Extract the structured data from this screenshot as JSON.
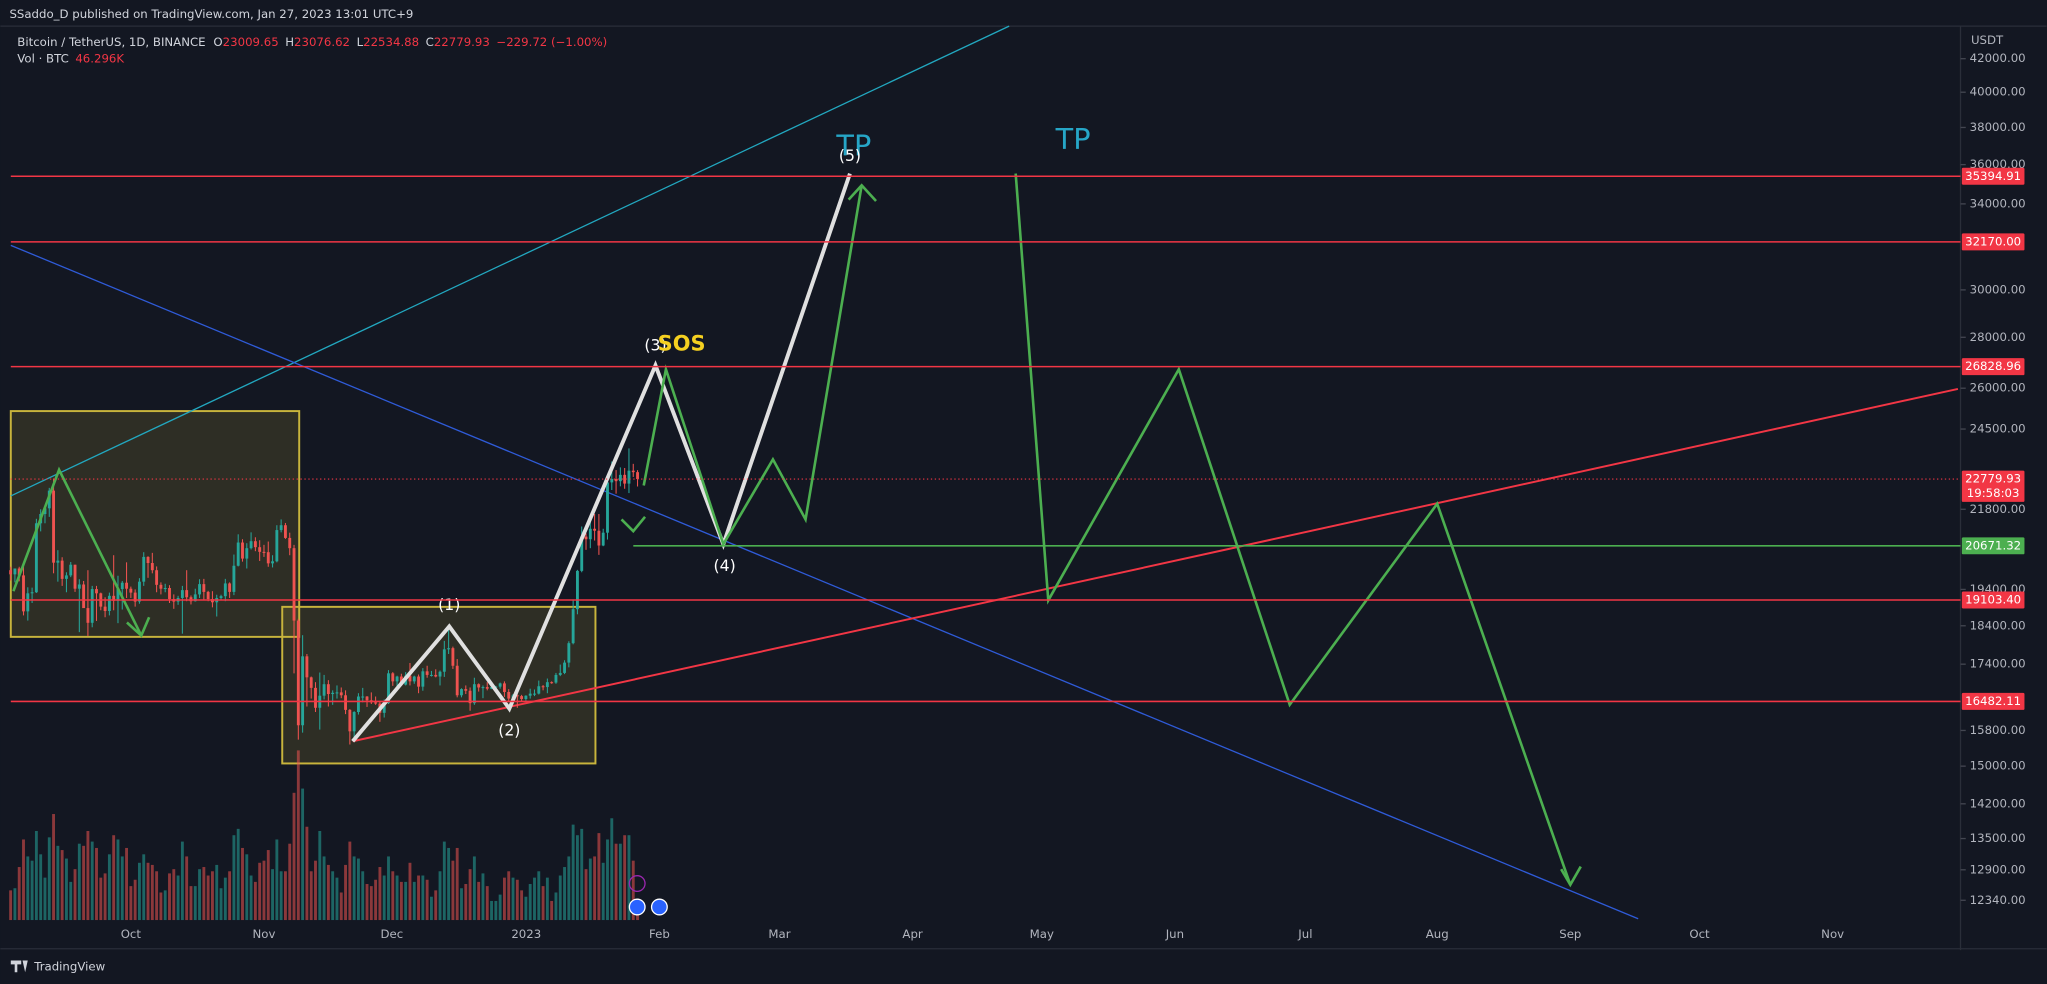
{
  "header": {
    "publisher": "SSaddo_D published on TradingView.com, Jan 27, 2023 13:01 UTC+9",
    "symbol": "Bitcoin / TetherUS, 1D, BINANCE",
    "o_label": "O",
    "open": "23009.65",
    "h_label": "H",
    "high": "23076.62",
    "l_label": "L",
    "low": "22534.88",
    "c_label": "C",
    "close": "22779.93",
    "change": "−229.72 (−1.00%)",
    "vol_label": "Vol · BTC",
    "vol_value": "46.296K"
  },
  "footer": "TradingView",
  "chart_data": {
    "type": "candlestick",
    "currency": "USDT",
    "log": true,
    "ylim": [
      11990,
      44040
    ],
    "yticks": [
      {
        "value": 42000,
        "label": "42000.00"
      },
      {
        "value": 40000,
        "label": "40000.00"
      },
      {
        "value": 38000,
        "label": "38000.00"
      },
      {
        "value": 36000,
        "label": "36000.00"
      },
      {
        "value": 34000,
        "label": "34000.00"
      },
      {
        "value": 30000,
        "label": "30000.00"
      },
      {
        "value": 28000,
        "label": "28000.00"
      },
      {
        "value": 26000,
        "label": "26000.00"
      },
      {
        "value": 24500,
        "label": "24500.00"
      },
      {
        "value": 21800,
        "label": "21800.00"
      },
      {
        "value": 19400,
        "label": "19400.00"
      },
      {
        "value": 18400,
        "label": "18400.00"
      },
      {
        "value": 17400,
        "label": "17400.00"
      },
      {
        "value": 15800,
        "label": "15800.00"
      },
      {
        "value": 15000,
        "label": "15000.00"
      },
      {
        "value": 14200,
        "label": "14200.00"
      },
      {
        "value": 13500,
        "label": "13500.00"
      },
      {
        "value": 12900,
        "label": "12900.00"
      },
      {
        "value": 12340,
        "label": "12340.00"
      }
    ],
    "time_labels": [
      "Oct",
      "Nov",
      "Dec",
      "2023",
      "Feb",
      "Mar",
      "Apr",
      "May",
      "Jun",
      "Jul",
      "Aug",
      "Sep",
      "Oct",
      "Nov"
    ],
    "up_color": "#26a69a",
    "down_color": "#ef5350",
    "candles": [
      [
        19950,
        20050,
        19650,
        19830
      ],
      [
        19830,
        20000,
        19600,
        20000
      ],
      [
        20000,
        20050,
        19630,
        19800
      ],
      [
        19800,
        20180,
        18680,
        18790
      ],
      [
        18790,
        19460,
        18540,
        19290
      ],
      [
        19290,
        19450,
        19020,
        19320
      ],
      [
        19320,
        21500,
        19300,
        21360
      ],
      [
        21360,
        21800,
        21110,
        21650
      ],
      [
        21650,
        21850,
        21360,
        21830
      ],
      [
        21830,
        22490,
        21560,
        22400
      ],
      [
        22400,
        22800,
        19860,
        20170
      ],
      [
        20170,
        20540,
        19620,
        20230
      ],
      [
        20230,
        20330,
        19500,
        19700
      ],
      [
        19700,
        19890,
        19320,
        19800
      ],
      [
        19800,
        20190,
        19750,
        20110
      ],
      [
        20110,
        20110,
        19330,
        19420
      ],
      [
        19420,
        19690,
        18230,
        19540
      ],
      [
        19540,
        19640,
        18900,
        18880
      ],
      [
        18880,
        19950,
        18130,
        18480
      ],
      [
        18480,
        19500,
        18360,
        19410
      ],
      [
        19410,
        19500,
        18530,
        19290
      ],
      [
        19290,
        19310,
        18820,
        18920
      ],
      [
        18920,
        19180,
        18630,
        18800
      ],
      [
        18800,
        19310,
        18680,
        19220
      ],
      [
        19220,
        20390,
        18820,
        19080
      ],
      [
        19080,
        19790,
        18470,
        19410
      ],
      [
        19410,
        19640,
        18840,
        19590
      ],
      [
        19590,
        20180,
        19160,
        19420
      ],
      [
        19420,
        19480,
        19160,
        19310
      ],
      [
        19310,
        19400,
        18920,
        19060
      ],
      [
        19060,
        19720,
        19000,
        19620
      ],
      [
        19620,
        20480,
        19500,
        20340
      ],
      [
        20340,
        20360,
        19730,
        20160
      ],
      [
        20160,
        20460,
        19860,
        19950
      ],
      [
        19950,
        20060,
        19320,
        19530
      ],
      [
        19530,
        19600,
        19260,
        19420
      ],
      [
        19420,
        19560,
        19320,
        19440
      ],
      [
        19440,
        19520,
        19020,
        19130
      ],
      [
        19130,
        19260,
        18860,
        19060
      ],
      [
        19060,
        19220,
        18970,
        19160
      ],
      [
        19160,
        19500,
        18190,
        19380
      ],
      [
        19380,
        19950,
        19070,
        19180
      ],
      [
        19180,
        19230,
        18980,
        19070
      ],
      [
        19070,
        19420,
        19060,
        19260
      ],
      [
        19260,
        19690,
        19160,
        19550
      ],
      [
        19550,
        19700,
        19100,
        19330
      ],
      [
        19330,
        19360,
        19070,
        19130
      ],
      [
        19130,
        19350,
        18900,
        19040
      ],
      [
        19040,
        19250,
        18650,
        19160
      ],
      [
        19160,
        19250,
        19110,
        19210
      ],
      [
        19210,
        19700,
        19070,
        19570
      ],
      [
        19570,
        19600,
        19160,
        19330
      ],
      [
        19330,
        20410,
        19240,
        20080
      ],
      [
        20080,
        21020,
        20060,
        20770
      ],
      [
        20770,
        20870,
        20200,
        20290
      ],
      [
        20290,
        20750,
        20000,
        20600
      ],
      [
        20600,
        21080,
        20560,
        20810
      ],
      [
        20810,
        20930,
        20510,
        20630
      ],
      [
        20630,
        20840,
        20220,
        20490
      ],
      [
        20490,
        20700,
        20340,
        20480
      ],
      [
        20480,
        20800,
        20050,
        20150
      ],
      [
        20150,
        20390,
        20030,
        20210
      ],
      [
        20210,
        21300,
        20180,
        21150
      ],
      [
        21150,
        21480,
        21080,
        21300
      ],
      [
        21300,
        21370,
        20880,
        20910
      ],
      [
        20910,
        21070,
        20390,
        20600
      ],
      [
        20600,
        20700,
        17170,
        18540
      ],
      [
        18540,
        18590,
        15590,
        15920
      ],
      [
        15920,
        18150,
        15750,
        17600
      ],
      [
        17600,
        17660,
        16360,
        17070
      ],
      [
        17070,
        17090,
        16550,
        16810
      ],
      [
        16810,
        16950,
        16230,
        16330
      ],
      [
        16330,
        17190,
        15820,
        16620
      ],
      [
        16620,
        17130,
        16530,
        16900
      ],
      [
        16900,
        17000,
        16360,
        16660
      ],
      [
        16660,
        16750,
        16400,
        16690
      ],
      [
        16690,
        16870,
        16550,
        16700
      ],
      [
        16700,
        16820,
        16560,
        16630
      ],
      [
        16630,
        16750,
        16180,
        16280
      ],
      [
        16280,
        16300,
        15480,
        15780
      ],
      [
        15780,
        16250,
        15630,
        16230
      ],
      [
        16230,
        16680,
        16170,
        16600
      ],
      [
        16600,
        16810,
        16460,
        16600
      ],
      [
        16600,
        16610,
        16350,
        16510
      ],
      [
        16510,
        16700,
        16420,
        16460
      ],
      [
        16460,
        16600,
        16400,
        16430
      ],
      [
        16430,
        16480,
        16000,
        16210
      ],
      [
        16210,
        16530,
        16100,
        16440
      ],
      [
        16440,
        17250,
        16420,
        17170
      ],
      [
        17170,
        17200,
        16860,
        16970
      ],
      [
        16970,
        17110,
        16790,
        17090
      ],
      [
        17090,
        17160,
        16860,
        16890
      ],
      [
        16890,
        17200,
        16870,
        17110
      ],
      [
        17110,
        17430,
        16870,
        16970
      ],
      [
        16970,
        17110,
        16910,
        17090
      ],
      [
        17090,
        17140,
        16680,
        16840
      ],
      [
        16840,
        17300,
        16740,
        17220
      ],
      [
        17220,
        17360,
        17060,
        17130
      ],
      [
        17130,
        17230,
        17090,
        17130
      ],
      [
        17130,
        17270,
        17070,
        17090
      ],
      [
        17090,
        17240,
        16870,
        17210
      ],
      [
        17210,
        18000,
        17080,
        17780
      ],
      [
        17780,
        18390,
        17660,
        17810
      ],
      [
        17810,
        17850,
        17280,
        17360
      ],
      [
        17360,
        17530,
        16580,
        16630
      ],
      [
        16630,
        16800,
        16580,
        16780
      ],
      [
        16780,
        16870,
        16660,
        16740
      ],
      [
        16740,
        16820,
        16260,
        16440
      ],
      [
        16440,
        17060,
        16400,
        16900
      ],
      [
        16900,
        16920,
        16720,
        16820
      ],
      [
        16820,
        16870,
        16560,
        16830
      ],
      [
        16830,
        16950,
        16750,
        16790
      ],
      [
        16790,
        16870,
        16780,
        16830
      ],
      [
        16830,
        16860,
        16730,
        16840
      ],
      [
        16840,
        16940,
        16790,
        16920
      ],
      [
        16920,
        16970,
        16590,
        16710
      ],
      [
        16710,
        16780,
        16470,
        16550
      ],
      [
        16550,
        16660,
        16490,
        16630
      ],
      [
        16630,
        16650,
        16330,
        16610
      ],
      [
        16610,
        16640,
        16480,
        16540
      ],
      [
        16540,
        16630,
        16500,
        16620
      ],
      [
        16620,
        16790,
        16550,
        16670
      ],
      [
        16670,
        16770,
        16610,
        16670
      ],
      [
        16670,
        16990,
        16650,
        16850
      ],
      [
        16850,
        16880,
        16750,
        16830
      ],
      [
        16830,
        17040,
        16680,
        16950
      ],
      [
        16950,
        16970,
        16910,
        16940
      ],
      [
        16940,
        17180,
        16910,
        17130
      ],
      [
        17130,
        17390,
        17100,
        17180
      ],
      [
        17180,
        17500,
        17150,
        17440
      ],
      [
        17440,
        17990,
        17320,
        17940
      ],
      [
        17940,
        19120,
        17910,
        18850
      ],
      [
        18850,
        19960,
        18710,
        19930
      ],
      [
        19930,
        21260,
        19890,
        20950
      ],
      [
        20950,
        21050,
        20550,
        20870
      ],
      [
        20870,
        21470,
        20600,
        21190
      ],
      [
        21190,
        21650,
        20830,
        21130
      ],
      [
        21130,
        21650,
        20400,
        20680
      ],
      [
        20680,
        21190,
        20660,
        21070
      ],
      [
        21070,
        22750,
        20860,
        22670
      ],
      [
        22670,
        23370,
        22420,
        22780
      ],
      [
        22780,
        23080,
        22300,
        22710
      ],
      [
        22710,
        23170,
        22540,
        22920
      ],
      [
        22920,
        23150,
        22460,
        22630
      ],
      [
        22630,
        23820,
        22320,
        23060
      ],
      [
        23060,
        23290,
        22850,
        23010
      ],
      [
        23009.65,
        23076.62,
        22534.88,
        22779.93
      ]
    ],
    "volumes": [
      140,
      150,
      250,
      380,
      300,
      280,
      420,
      310,
      200,
      390,
      500,
      350,
      330,
      290,
      180,
      240,
      360,
      350,
      420,
      370,
      340,
      200,
      220,
      310,
      400,
      380,
      300,
      340,
      160,
      190,
      270,
      310,
      270,
      260,
      230,
      130,
      140,
      220,
      240,
      210,
      370,
      300,
      160,
      160,
      240,
      250,
      210,
      230,
      260,
      150,
      200,
      230,
      400,
      430,
      340,
      310,
      210,
      180,
      270,
      280,
      330,
      240,
      380,
      230,
      230,
      360,
      600,
      800,
      620,
      440,
      230,
      280,
      420,
      300,
      260,
      230,
      200,
      130,
      260,
      370,
      300,
      290,
      230,
      170,
      160,
      190,
      250,
      210,
      300,
      230,
      210,
      180,
      180,
      270,
      180,
      210,
      210,
      190,
      110,
      140,
      230,
      370,
      340,
      280,
      340,
      150,
      170,
      240,
      300,
      180,
      220,
      160,
      90,
      90,
      120,
      200,
      230,
      200,
      190,
      140,
      110,
      170,
      200,
      230,
      160,
      200,
      90,
      130,
      210,
      250,
      300,
      450,
      400,
      430,
      240,
      290,
      300,
      410,
      270,
      380,
      480,
      360,
      360,
      400,
      400,
      280,
      46.296
    ],
    "levels": [
      {
        "value": 35394.91,
        "label": "35394.91",
        "color": "#f23645"
      },
      {
        "value": 32170,
        "label": "32170.00",
        "color": "#f23645"
      },
      {
        "value": 26828.96,
        "label": "26828.96",
        "color": "#f23645"
      },
      {
        "value": 20671.32,
        "label": "20671.32",
        "color": "#4caf50"
      },
      {
        "value": 19103.4,
        "label": "19103.40",
        "color": "#f23645"
      },
      {
        "value": 16482.11,
        "label": "16482.11",
        "color": "#f23645"
      }
    ],
    "last_price": {
      "value": 22779.93,
      "label": "22779.93"
    },
    "countdown": "19:58:03",
    "annotations": {
      "tp1": "TP",
      "tp2": "TP",
      "w1": "(1)",
      "w2": "(2)",
      "w3": "(3)",
      "w4": "(4)",
      "w5": "(5)",
      "sos": "SOS"
    }
  }
}
